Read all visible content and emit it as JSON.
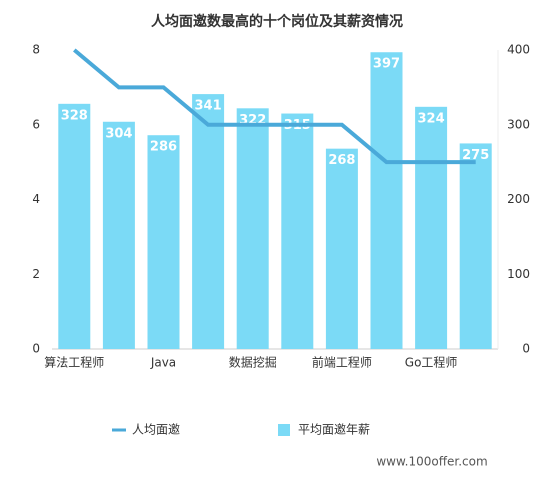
{
  "chart_data": {
    "type": "bar",
    "title": "人均面邀数最高的十个岗位及其薪资情况",
    "categories": [
      "算法工程师",
      null,
      "Java",
      null,
      "数据挖掘",
      null,
      "前端工程师",
      null,
      "Go工程师",
      null
    ],
    "series": [
      {
        "name": "人均面邀",
        "type": "line",
        "color": "#4aa9d9",
        "values": [
          8,
          7,
          7,
          6,
          6,
          6,
          6,
          5,
          5,
          5
        ]
      },
      {
        "name": "平均面邀年薪",
        "type": "bar",
        "axis": "y2",
        "color": "#7bdaf6",
        "values": [
          328,
          304,
          286,
          341,
          322,
          315,
          268,
          397,
          324,
          275
        ]
      }
    ],
    "ylim": [
      0,
      8
    ],
    "yticks": [
      0,
      2,
      4,
      6,
      8
    ],
    "y2lim": [
      0,
      400
    ],
    "y2ticks": [
      0,
      100,
      200,
      300,
      400
    ],
    "grid": false,
    "annotation": "www.100offer.com"
  }
}
